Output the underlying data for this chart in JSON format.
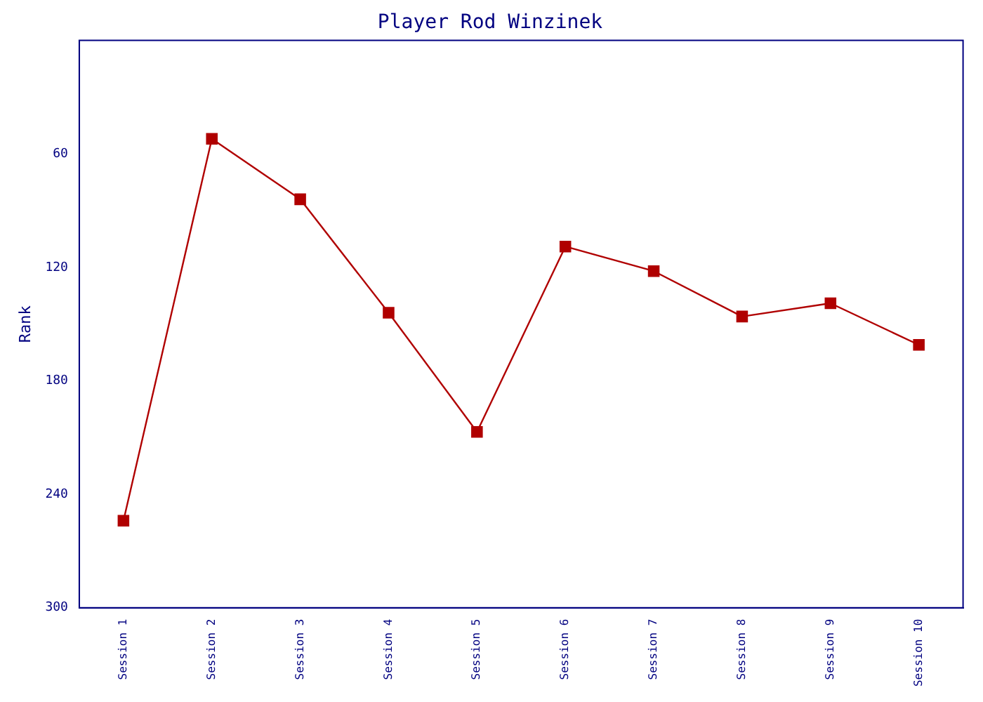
{
  "chart_data": {
    "type": "line",
    "title": "Player Rod Winzinek",
    "ylabel": "Rank",
    "categories": [
      "Session 1",
      "Session 2",
      "Session 3",
      "Session 4",
      "Session 5",
      "Session 6",
      "Session 7",
      "Session 8",
      "Session 9",
      "Session 10"
    ],
    "series": [
      {
        "color": "#b00000",
        "values": [
          254,
          52,
          84,
          144,
          207,
          109,
          122,
          146,
          139,
          161
        ]
      }
    ],
    "ylim": [
      300,
      0
    ],
    "yticks": [
      60,
      120,
      180,
      240,
      300
    ],
    "grid": false,
    "legend": false,
    "marker": "square",
    "line_style": "solid"
  }
}
